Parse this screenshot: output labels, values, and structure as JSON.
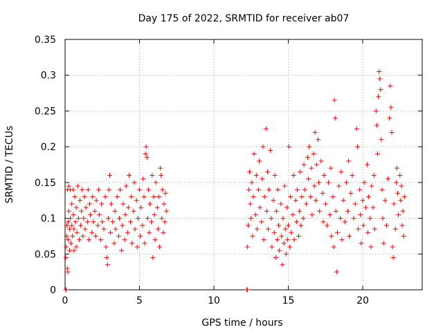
{
  "chart_data": {
    "type": "scatter",
    "title": "Day 175 of 2022, SRMTID for receiver ab07",
    "xlabel": "GPS time / hours",
    "ylabel": "SRMTID / TECUs",
    "xlim": [
      0,
      24
    ],
    "ylim": [
      0,
      0.35
    ],
    "x_ticks": [
      0,
      5,
      10,
      15,
      20
    ],
    "x_tick_labels": [
      "0",
      "5",
      "10",
      "15",
      "20"
    ],
    "y_ticks": [
      0,
      0.05,
      0.1,
      0.15,
      0.2,
      0.25,
      0.3,
      0.35
    ],
    "y_tick_labels": [
      "0",
      "0.05",
      "0.1",
      "0.15",
      "0.2",
      "0.25",
      "0.3",
      "0.35"
    ],
    "grid": true,
    "marker": "+",
    "series": [
      {
        "name": "SRMTID",
        "color": "#ff0000",
        "points": [
          [
            0.05,
            0.0
          ],
          [
            0.08,
            0.0
          ],
          [
            0.05,
            0.045
          ],
          [
            0.08,
            0.06
          ],
          [
            0.1,
            0.075
          ],
          [
            0.12,
            0.09
          ],
          [
            0.15,
            0.03
          ],
          [
            0.15,
            0.14
          ],
          [
            0.18,
            0.025
          ],
          [
            0.2,
            0.07
          ],
          [
            0.22,
            0.095
          ],
          [
            0.25,
            0.11
          ],
          [
            0.25,
            0.145
          ],
          [
            0.3,
            0.055
          ],
          [
            0.3,
            0.085
          ],
          [
            0.35,
            0.1
          ],
          [
            0.35,
            0.14
          ],
          [
            0.4,
            0.065
          ],
          [
            0.45,
            0.12
          ],
          [
            0.45,
            0.09
          ],
          [
            0.5,
            0.075
          ],
          [
            0.55,
            0.14
          ],
          [
            0.55,
            0.105
          ],
          [
            0.6,
            0.055
          ],
          [
            0.6,
            0.085
          ],
          [
            0.65,
            0.13
          ],
          [
            0.7,
            0.095
          ],
          [
            0.75,
            0.06
          ],
          [
            0.75,
            0.115
          ],
          [
            0.8,
            0.08
          ],
          [
            0.85,
            0.145
          ],
          [
            0.9,
            0.1
          ],
          [
            0.95,
            0.07
          ],
          [
            1.0,
            0.125
          ],
          [
            1.05,
            0.09
          ],
          [
            1.1,
            0.11
          ],
          [
            1.15,
            0.14
          ],
          [
            1.2,
            0.075
          ],
          [
            1.25,
            0.1
          ],
          [
            1.3,
            0.13
          ],
          [
            1.35,
            0.085
          ],
          [
            1.4,
            0.115
          ],
          [
            1.5,
            0.095
          ],
          [
            1.55,
            0.14
          ],
          [
            1.6,
            0.07
          ],
          [
            1.65,
            0.12
          ],
          [
            1.7,
            0.105
          ],
          [
            1.8,
            0.08
          ],
          [
            1.85,
            0.13
          ],
          [
            1.9,
            0.095
          ],
          [
            2.0,
            0.11
          ],
          [
            2.05,
            0.075
          ],
          [
            2.1,
            0.125
          ],
          [
            2.2,
            0.09
          ],
          [
            2.25,
            0.14
          ],
          [
            2.3,
            0.105
          ],
          [
            2.4,
            0.07
          ],
          [
            2.45,
            0.12
          ],
          [
            2.5,
            0.095
          ],
          [
            2.6,
            0.085
          ],
          [
            2.7,
            0.13
          ],
          [
            2.75,
            0.06
          ],
          [
            2.8,
            0.045
          ],
          [
            2.85,
            0.035
          ],
          [
            2.9,
            0.1
          ],
          [
            2.95,
            0.14
          ],
          [
            3.0,
            0.16
          ],
          [
            3.05,
            0.08
          ],
          [
            3.1,
            0.12
          ],
          [
            3.2,
            0.095
          ],
          [
            3.3,
            0.065
          ],
          [
            3.35,
            0.11
          ],
          [
            3.4,
            0.085
          ],
          [
            3.5,
            0.13
          ],
          [
            3.6,
            0.075
          ],
          [
            3.65,
            0.1
          ],
          [
            3.7,
            0.14
          ],
          [
            3.8,
            0.055
          ],
          [
            3.85,
            0.09
          ],
          [
            3.9,
            0.12
          ],
          [
            4.0,
            0.07
          ],
          [
            4.05,
            0.105
          ],
          [
            4.1,
            0.145
          ],
          [
            4.2,
            0.08
          ],
          [
            4.25,
            0.115
          ],
          [
            4.3,
            0.16
          ],
          [
            4.4,
            0.095
          ],
          [
            4.45,
            0.13
          ],
          [
            4.5,
            0.065
          ],
          [
            4.6,
            0.11
          ],
          [
            4.65,
            0.15
          ],
          [
            4.7,
            0.085
          ],
          [
            4.8,
            0.125
          ],
          [
            4.85,
            0.06
          ],
          [
            4.9,
            0.1
          ],
          [
            5.0,
            0.14
          ],
          [
            5.05,
            0.075
          ],
          [
            5.1,
            0.115
          ],
          [
            5.2,
            0.09
          ],
          [
            5.25,
            0.155
          ],
          [
            5.3,
            0.13
          ],
          [
            5.35,
            0.065
          ],
          [
            5.4,
            0.19
          ],
          [
            5.45,
            0.2
          ],
          [
            5.5,
            0.185
          ],
          [
            5.55,
            0.1
          ],
          [
            5.6,
            0.14
          ],
          [
            5.65,
            0.08
          ],
          [
            5.7,
            0.12
          ],
          [
            5.8,
            0.095
          ],
          [
            5.85,
            0.16
          ],
          [
            5.9,
            0.045
          ],
          [
            5.95,
            0.13
          ],
          [
            6.0,
            0.105
          ],
          [
            6.05,
            0.07
          ],
          [
            6.1,
            0.15
          ],
          [
            6.2,
            0.115
          ],
          [
            6.25,
            0.085
          ],
          [
            6.3,
            0.13
          ],
          [
            6.35,
            0.06
          ],
          [
            6.4,
            0.17
          ],
          [
            6.45,
            0.16
          ],
          [
            6.5,
            0.1
          ],
          [
            6.55,
            0.14
          ],
          [
            6.6,
            0.08
          ],
          [
            6.65,
            0.12
          ],
          [
            6.7,
            0.095
          ],
          [
            6.75,
            0.135
          ],
          [
            6.8,
            0.11
          ],
          [
            12.2,
            0.0
          ],
          [
            12.25,
            0.0
          ],
          [
            12.25,
            0.06
          ],
          [
            12.3,
            0.09
          ],
          [
            12.35,
            0.14
          ],
          [
            12.4,
            0.165
          ],
          [
            12.45,
            0.12
          ],
          [
            12.5,
            0.1
          ],
          [
            12.55,
            0.15
          ],
          [
            12.6,
            0.075
          ],
          [
            12.65,
            0.13
          ],
          [
            12.7,
            0.19
          ],
          [
            12.8,
            0.105
          ],
          [
            12.85,
            0.16
          ],
          [
            12.9,
            0.085
          ],
          [
            13.0,
            0.14
          ],
          [
            13.05,
            0.18
          ],
          [
            13.1,
            0.115
          ],
          [
            13.2,
            0.095
          ],
          [
            13.25,
            0.155
          ],
          [
            13.3,
            0.2
          ],
          [
            13.35,
            0.07
          ],
          [
            13.4,
            0.13
          ],
          [
            13.5,
            0.225
          ],
          [
            13.55,
            0.11
          ],
          [
            13.6,
            0.165
          ],
          [
            13.65,
            0.085
          ],
          [
            13.7,
            0.14
          ],
          [
            13.8,
            0.195
          ],
          [
            13.85,
            0.1
          ],
          [
            13.9,
            0.06
          ],
          [
            14.0,
            0.125
          ],
          [
            14.05,
            0.08
          ],
          [
            14.1,
            0.16
          ],
          [
            14.15,
            0.045
          ],
          [
            14.2,
            0.11
          ],
          [
            14.25,
            0.07
          ],
          [
            14.3,
            0.14
          ],
          [
            14.35,
            0.09
          ],
          [
            14.4,
            0.055
          ],
          [
            14.5,
            0.12
          ],
          [
            14.55,
            0.075
          ],
          [
            14.6,
            0.035
          ],
          [
            14.65,
            0.1
          ],
          [
            14.7,
            0.065
          ],
          [
            14.75,
            0.145
          ],
          [
            14.8,
            0.085
          ],
          [
            14.85,
            0.05
          ],
          [
            14.9,
            0.115
          ],
          [
            14.95,
            0.07
          ],
          [
            15.0,
            0.09
          ],
          [
            15.05,
            0.2
          ],
          [
            15.1,
            0.06
          ],
          [
            15.15,
            0.13
          ],
          [
            15.2,
            0.08
          ],
          [
            15.3,
            0.105
          ],
          [
            15.35,
            0.16
          ],
          [
            15.4,
            0.07
          ],
          [
            15.5,
            0.125
          ],
          [
            15.55,
            0.095
          ],
          [
            15.6,
            0.14
          ],
          [
            15.7,
            0.075
          ],
          [
            15.75,
            0.11
          ],
          [
            15.8,
            0.165
          ],
          [
            15.85,
            0.09
          ],
          [
            15.9,
            0.13
          ],
          [
            16.0,
            0.1
          ],
          [
            16.05,
            0.175
          ],
          [
            16.1,
            0.14
          ],
          [
            16.2,
            0.12
          ],
          [
            16.3,
            0.185
          ],
          [
            16.35,
            0.155
          ],
          [
            16.4,
            0.2
          ],
          [
            16.5,
            0.13
          ],
          [
            16.55,
            0.17
          ],
          [
            16.6,
            0.105
          ],
          [
            16.7,
            0.19
          ],
          [
            16.75,
            0.145
          ],
          [
            16.8,
            0.22
          ],
          [
            16.85,
            0.125
          ],
          [
            16.9,
            0.175
          ],
          [
            17.0,
            0.21
          ],
          [
            17.05,
            0.15
          ],
          [
            17.1,
            0.11
          ],
          [
            17.2,
            0.18
          ],
          [
            17.3,
            0.135
          ],
          [
            17.35,
            0.095
          ],
          [
            17.4,
            0.16
          ],
          [
            17.5,
            0.12
          ],
          [
            17.6,
            0.09
          ],
          [
            17.7,
            0.15
          ],
          [
            17.8,
            0.105
          ],
          [
            17.85,
            0.17
          ],
          [
            17.9,
            0.075
          ],
          [
            18.0,
            0.13
          ],
          [
            18.05,
            0.06
          ],
          [
            18.1,
            0.265
          ],
          [
            18.15,
            0.24
          ],
          [
            18.2,
            0.11
          ],
          [
            18.25,
            0.025
          ],
          [
            18.3,
            0.08
          ],
          [
            18.4,
            0.145
          ],
          [
            18.5,
            0.1
          ],
          [
            18.55,
            0.165
          ],
          [
            18.6,
            0.07
          ],
          [
            18.7,
            0.125
          ],
          [
            18.8,
            0.095
          ],
          [
            18.9,
            0.15
          ],
          [
            19.0,
            0.11
          ],
          [
            19.05,
            0.18
          ],
          [
            19.1,
            0.075
          ],
          [
            19.2,
            0.135
          ],
          [
            19.3,
            0.16
          ],
          [
            19.4,
            0.1
          ],
          [
            19.5,
            0.12
          ],
          [
            19.6,
            0.225
          ],
          [
            19.65,
            0.2
          ],
          [
            19.7,
            0.085
          ],
          [
            19.8,
            0.14
          ],
          [
            19.85,
            0.105
          ],
          [
            19.9,
            0.065
          ],
          [
            20.0,
            0.125
          ],
          [
            20.05,
            0.09
          ],
          [
            20.1,
            0.15
          ],
          [
            20.2,
            0.115
          ],
          [
            20.3,
            0.175
          ],
          [
            20.35,
            0.08
          ],
          [
            20.4,
            0.13
          ],
          [
            20.5,
            0.1
          ],
          [
            20.55,
            0.06
          ],
          [
            20.6,
            0.145
          ],
          [
            20.7,
            0.115
          ],
          [
            20.75,
            0.16
          ],
          [
            20.8,
            0.085
          ],
          [
            20.9,
            0.25
          ],
          [
            20.95,
            0.23
          ],
          [
            21.0,
            0.19
          ],
          [
            21.05,
            0.27
          ],
          [
            21.1,
            0.305
          ],
          [
            21.15,
            0.295
          ],
          [
            21.2,
            0.28
          ],
          [
            21.25,
            0.21
          ],
          [
            21.3,
            0.14
          ],
          [
            21.35,
            0.1
          ],
          [
            21.4,
            0.065
          ],
          [
            21.5,
            0.125
          ],
          [
            21.6,
            0.09
          ],
          [
            21.7,
            0.155
          ],
          [
            21.8,
            0.24
          ],
          [
            21.85,
            0.285
          ],
          [
            21.9,
            0.255
          ],
          [
            21.95,
            0.22
          ],
          [
            22.0,
            0.06
          ],
          [
            22.05,
            0.045
          ],
          [
            22.1,
            0.12
          ],
          [
            22.2,
            0.085
          ],
          [
            22.25,
            0.15
          ],
          [
            22.3,
            0.17
          ],
          [
            22.35,
            0.135
          ],
          [
            22.4,
            0.105
          ],
          [
            22.5,
            0.16
          ],
          [
            22.55,
            0.125
          ],
          [
            22.6,
            0.145
          ],
          [
            22.65,
            0.09
          ],
          [
            22.7,
            0.11
          ],
          [
            22.75,
            0.075
          ],
          [
            22.8,
            0.13
          ]
        ]
      }
    ]
  }
}
